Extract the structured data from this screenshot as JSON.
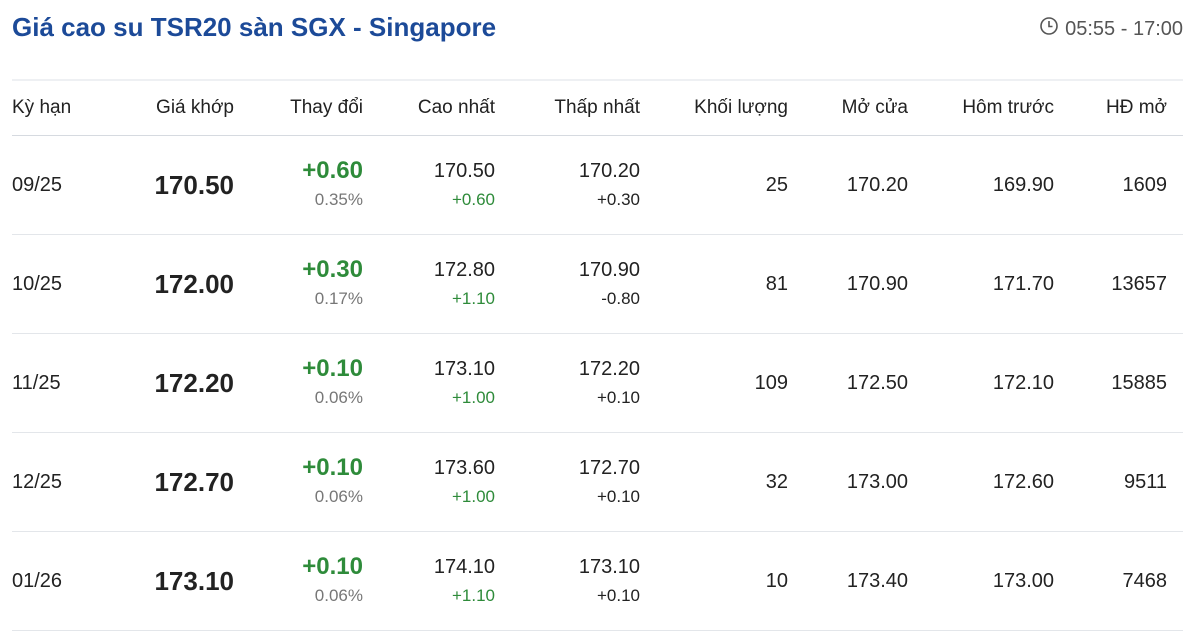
{
  "header": {
    "title": "Giá cao su TSR20 sàn SGX - Singapore",
    "hours": "05:55 - 17:00",
    "icon": "clock-icon"
  },
  "colors": {
    "title": "#1c4a98",
    "up": "#2e8b3a"
  },
  "columns": [
    "Kỳ hạn",
    "Giá khớp",
    "Thay đổi",
    "Cao nhất",
    "Thấp nhất",
    "Khối lượng",
    "Mở cửa",
    "Hôm trước",
    "HĐ mở"
  ],
  "rows": [
    {
      "term": "09/25",
      "price": "170.50",
      "change": "+0.60",
      "pct": "0.35%",
      "high": "170.50",
      "high_chg": "+0.60",
      "low": "170.20",
      "low_chg": "+0.30",
      "volume": "25",
      "open": "170.20",
      "prev": "169.90",
      "oi": "1609"
    },
    {
      "term": "10/25",
      "price": "172.00",
      "change": "+0.30",
      "pct": "0.17%",
      "high": "172.80",
      "high_chg": "+1.10",
      "low": "170.90",
      "low_chg": "-0.80",
      "volume": "81",
      "open": "170.90",
      "prev": "171.70",
      "oi": "13657"
    },
    {
      "term": "11/25",
      "price": "172.20",
      "change": "+0.10",
      "pct": "0.06%",
      "high": "173.10",
      "high_chg": "+1.00",
      "low": "172.20",
      "low_chg": "+0.10",
      "volume": "109",
      "open": "172.50",
      "prev": "172.10",
      "oi": "15885"
    },
    {
      "term": "12/25",
      "price": "172.70",
      "change": "+0.10",
      "pct": "0.06%",
      "high": "173.60",
      "high_chg": "+1.00",
      "low": "172.70",
      "low_chg": "+0.10",
      "volume": "32",
      "open": "173.00",
      "prev": "172.60",
      "oi": "9511"
    },
    {
      "term": "01/26",
      "price": "173.10",
      "change": "+0.10",
      "pct": "0.06%",
      "high": "174.10",
      "high_chg": "+1.10",
      "low": "173.10",
      "low_chg": "+0.10",
      "volume": "10",
      "open": "173.40",
      "prev": "173.00",
      "oi": "7468"
    }
  ]
}
